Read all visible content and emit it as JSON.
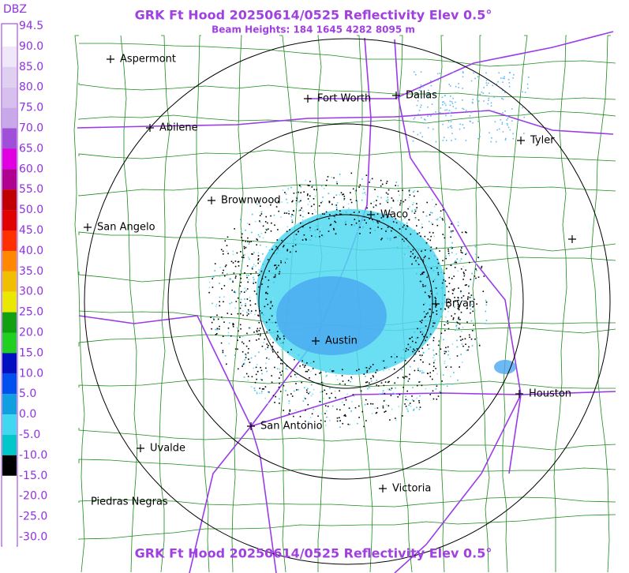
{
  "header": {
    "title": "GRK Ft Hood 20250614/0525 Reflectivity Elev 0.5°",
    "subtitle": "Beam Heights: 184 1645 4282 8095 m"
  },
  "legend": {
    "title": "DBZ",
    "labels": [
      "94.5",
      "90.0",
      "85.0",
      "80.0",
      "75.0",
      "70.0",
      "65.0",
      "60.0",
      "55.0",
      "50.0",
      "45.0",
      "40.0",
      "35.0",
      "30.0",
      "25.0",
      "20.0",
      "15.0",
      "10.0",
      "5.0",
      "0.0",
      "-5.0",
      "-10.0",
      "-15.0",
      "-20.0",
      "-25.0",
      "-30.0"
    ]
  },
  "cities": [
    "Aspermont",
    "Fort Worth",
    "Dallas",
    "Abilene",
    "Tyler",
    "Brownwood",
    "Waco",
    "San Angelo",
    "Bryan",
    "Austin",
    "Houston",
    "San Antonio",
    "Uvalde",
    "Victoria",
    "Piedras Negras"
  ]
}
